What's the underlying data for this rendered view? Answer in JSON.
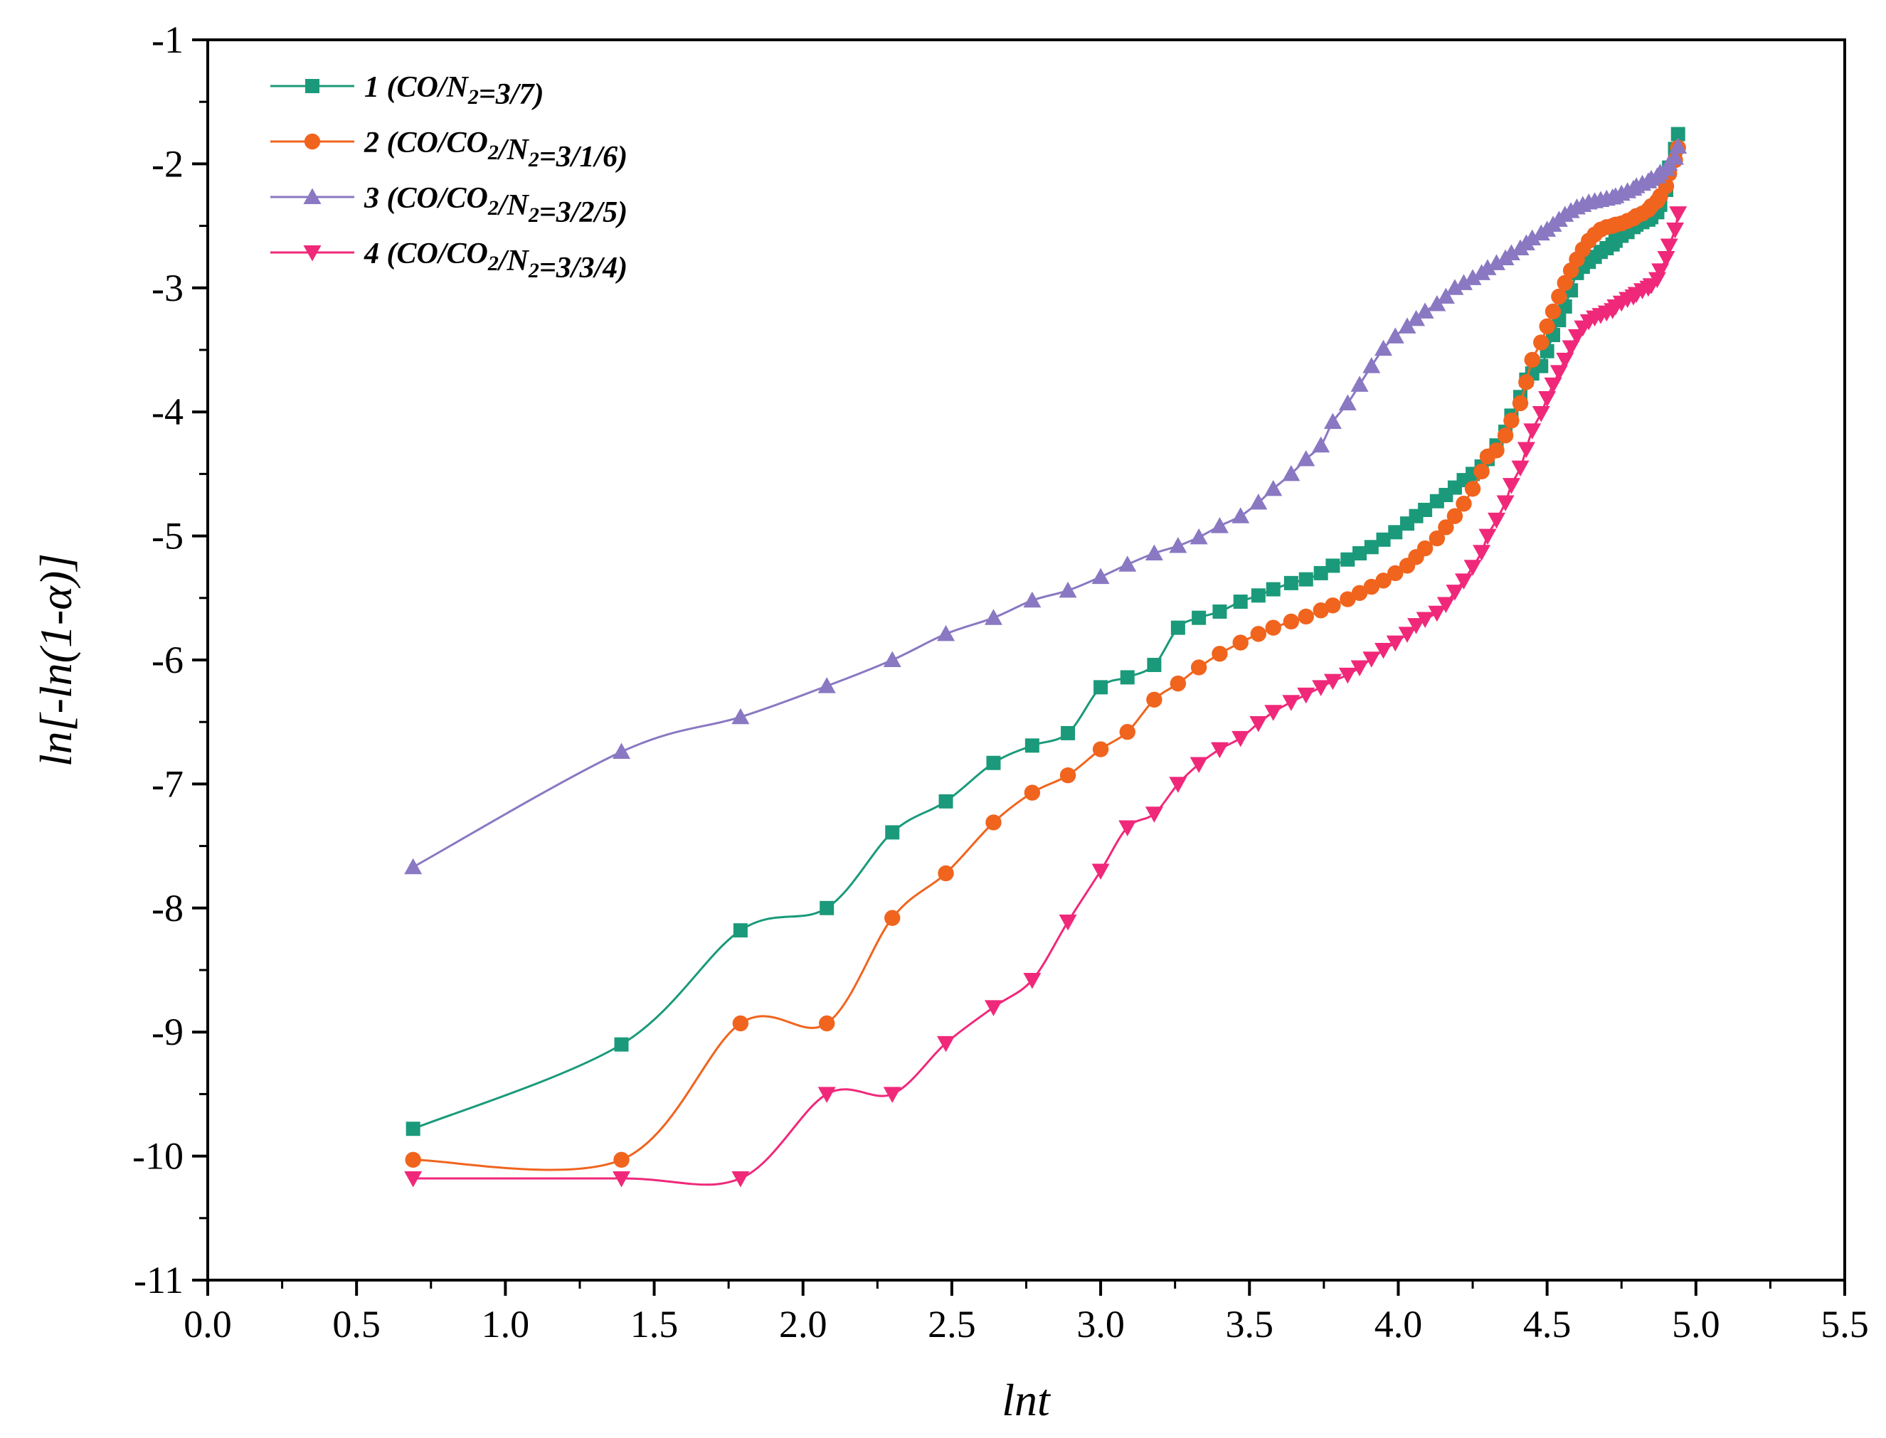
{
  "chart_data": {
    "type": "line",
    "title": "",
    "xlabel": "lnt",
    "ylabel": "ln[-ln(1-α)]",
    "xlim": [
      0.0,
      5.5
    ],
    "ylim": [
      -11,
      -1
    ],
    "x_ticks": [
      "0.0",
      "0.5",
      "1.0",
      "1.5",
      "2.0",
      "2.5",
      "3.0",
      "3.5",
      "4.0",
      "4.5",
      "5.0",
      "5.5"
    ],
    "y_ticks": [
      "-1",
      "-2",
      "-3",
      "-4",
      "-5",
      "-6",
      "-7",
      "-8",
      "-9",
      "-10",
      "-11"
    ],
    "legend_position": "top-left",
    "grid": false,
    "series": [
      {
        "name": "1 (CO/N2=3/7)",
        "legend_parts": [
          "1 (CO/N",
          "2",
          "=3/7)"
        ],
        "color": "#1a9a7a",
        "marker": "square",
        "x": [
          0.69,
          1.39,
          1.79,
          2.08,
          2.3,
          2.48,
          2.64,
          2.77,
          2.89,
          3.0,
          3.09,
          3.18,
          3.26,
          3.33,
          3.4,
          3.47,
          3.53,
          3.58,
          3.64,
          3.69,
          3.74,
          3.78,
          3.83,
          3.87,
          3.91,
          3.95,
          3.99,
          4.03,
          4.06,
          4.09,
          4.13,
          4.16,
          4.19,
          4.22,
          4.25,
          4.28,
          4.3,
          4.33,
          4.36,
          4.38,
          4.41,
          4.43,
          4.45,
          4.48,
          4.5,
          4.52,
          4.54,
          4.56,
          4.58,
          4.6,
          4.62,
          4.64,
          4.66,
          4.68,
          4.7,
          4.72,
          4.73,
          4.75,
          4.77,
          4.79,
          4.8,
          4.82,
          4.84,
          4.85,
          4.87,
          4.88,
          4.9,
          4.91,
          4.93,
          4.94
        ],
        "y": [
          -9.78,
          -9.1,
          -8.18,
          -8.0,
          -7.39,
          -7.14,
          -6.83,
          -6.69,
          -6.59,
          -6.22,
          -6.14,
          -6.04,
          -5.74,
          -5.66,
          -5.61,
          -5.53,
          -5.48,
          -5.43,
          -5.38,
          -5.35,
          -5.3,
          -5.24,
          -5.19,
          -5.14,
          -5.09,
          -5.03,
          -4.97,
          -4.9,
          -4.84,
          -4.79,
          -4.72,
          -4.67,
          -4.61,
          -4.55,
          -4.5,
          -4.44,
          -4.38,
          -4.27,
          -4.16,
          -4.03,
          -3.88,
          -3.74,
          -3.69,
          -3.63,
          -3.51,
          -3.38,
          -3.26,
          -3.15,
          -3.02,
          -2.88,
          -2.83,
          -2.79,
          -2.75,
          -2.71,
          -2.68,
          -2.65,
          -2.62,
          -2.58,
          -2.55,
          -2.51,
          -2.49,
          -2.47,
          -2.45,
          -2.43,
          -2.39,
          -2.33,
          -2.21,
          -2.03,
          -1.88,
          -1.76
        ]
      },
      {
        "name": "2 (CO/CO2/N2=3/1/6)",
        "legend_parts": [
          "2 (CO/CO",
          "2",
          "/N",
          "2",
          "=3/1/6)"
        ],
        "color": "#f0641e",
        "marker": "circle",
        "x": [
          0.69,
          1.39,
          1.79,
          2.08,
          2.3,
          2.48,
          2.64,
          2.77,
          2.89,
          3.0,
          3.09,
          3.18,
          3.26,
          3.33,
          3.4,
          3.47,
          3.53,
          3.58,
          3.64,
          3.69,
          3.74,
          3.78,
          3.83,
          3.87,
          3.91,
          3.95,
          3.99,
          4.03,
          4.06,
          4.09,
          4.13,
          4.16,
          4.19,
          4.22,
          4.25,
          4.28,
          4.3,
          4.33,
          4.36,
          4.38,
          4.41,
          4.43,
          4.45,
          4.48,
          4.5,
          4.52,
          4.54,
          4.56,
          4.58,
          4.6,
          4.62,
          4.64,
          4.66,
          4.68,
          4.7,
          4.72,
          4.73,
          4.75,
          4.77,
          4.79,
          4.8,
          4.82,
          4.84,
          4.85,
          4.87,
          4.88,
          4.9,
          4.91,
          4.93,
          4.94
        ],
        "y": [
          -10.03,
          -10.03,
          -8.93,
          -8.93,
          -8.08,
          -7.72,
          -7.31,
          -7.07,
          -6.93,
          -6.72,
          -6.58,
          -6.32,
          -6.19,
          -6.06,
          -5.95,
          -5.86,
          -5.79,
          -5.74,
          -5.69,
          -5.65,
          -5.6,
          -5.56,
          -5.51,
          -5.46,
          -5.41,
          -5.36,
          -5.3,
          -5.24,
          -5.17,
          -5.1,
          -5.02,
          -4.93,
          -4.84,
          -4.74,
          -4.62,
          -4.48,
          -4.36,
          -4.31,
          -4.19,
          -4.07,
          -3.93,
          -3.76,
          -3.58,
          -3.44,
          -3.31,
          -3.19,
          -3.07,
          -2.96,
          -2.86,
          -2.77,
          -2.69,
          -2.62,
          -2.57,
          -2.53,
          -2.51,
          -2.5,
          -2.49,
          -2.48,
          -2.46,
          -2.44,
          -2.42,
          -2.4,
          -2.37,
          -2.34,
          -2.3,
          -2.26,
          -2.18,
          -2.08,
          -1.97,
          -1.87
        ]
      },
      {
        "name": "3 (CO/CO2/N2=3/2/5)",
        "legend_parts": [
          "3 (CO/CO",
          "2",
          "/N",
          "2",
          "=3/2/5)"
        ],
        "color": "#8a78c2",
        "marker": "triangle-up",
        "x": [
          0.69,
          1.39,
          1.79,
          2.08,
          2.3,
          2.48,
          2.64,
          2.77,
          2.89,
          3.0,
          3.09,
          3.18,
          3.26,
          3.33,
          3.4,
          3.47,
          3.53,
          3.58,
          3.64,
          3.69,
          3.74,
          3.78,
          3.83,
          3.87,
          3.91,
          3.95,
          3.99,
          4.03,
          4.06,
          4.09,
          4.13,
          4.16,
          4.19,
          4.22,
          4.25,
          4.28,
          4.3,
          4.33,
          4.36,
          4.38,
          4.41,
          4.43,
          4.45,
          4.48,
          4.5,
          4.52,
          4.54,
          4.56,
          4.58,
          4.6,
          4.62,
          4.64,
          4.66,
          4.68,
          4.7,
          4.72,
          4.73,
          4.75,
          4.77,
          4.79,
          4.8,
          4.82,
          4.84,
          4.85,
          4.87,
          4.88,
          4.9,
          4.91,
          4.93,
          4.94
        ],
        "y": [
          -7.67,
          -6.74,
          -6.46,
          -6.21,
          -6.0,
          -5.79,
          -5.66,
          -5.52,
          -5.44,
          -5.33,
          -5.23,
          -5.14,
          -5.08,
          -5.01,
          -4.92,
          -4.84,
          -4.73,
          -4.62,
          -4.5,
          -4.38,
          -4.27,
          -4.08,
          -3.93,
          -3.78,
          -3.63,
          -3.49,
          -3.39,
          -3.31,
          -3.25,
          -3.19,
          -3.13,
          -3.07,
          -3.0,
          -2.96,
          -2.92,
          -2.88,
          -2.84,
          -2.8,
          -2.76,
          -2.72,
          -2.68,
          -2.64,
          -2.6,
          -2.56,
          -2.53,
          -2.49,
          -2.45,
          -2.41,
          -2.38,
          -2.35,
          -2.33,
          -2.31,
          -2.3,
          -2.29,
          -2.28,
          -2.27,
          -2.26,
          -2.24,
          -2.22,
          -2.2,
          -2.18,
          -2.16,
          -2.14,
          -2.12,
          -2.1,
          -2.07,
          -2.04,
          -2.0,
          -1.95,
          -1.86
        ]
      },
      {
        "name": "4 (CO/CO2/N2=3/3/4)",
        "legend_parts": [
          "4 (CO/CO",
          "2",
          "/N",
          "2",
          "=3/3/4)"
        ],
        "color": "#f0287a",
        "marker": "triangle-down",
        "x": [
          0.69,
          1.39,
          1.79,
          2.08,
          2.3,
          2.48,
          2.64,
          2.77,
          2.89,
          3.0,
          3.09,
          3.18,
          3.26,
          3.33,
          3.4,
          3.47,
          3.53,
          3.58,
          3.64,
          3.69,
          3.74,
          3.78,
          3.83,
          3.87,
          3.91,
          3.95,
          3.99,
          4.03,
          4.06,
          4.09,
          4.13,
          4.16,
          4.19,
          4.22,
          4.25,
          4.28,
          4.3,
          4.33,
          4.36,
          4.38,
          4.41,
          4.43,
          4.45,
          4.48,
          4.5,
          4.52,
          4.54,
          4.56,
          4.58,
          4.6,
          4.62,
          4.64,
          4.66,
          4.68,
          4.7,
          4.72,
          4.73,
          4.75,
          4.77,
          4.79,
          4.8,
          4.82,
          4.84,
          4.85,
          4.87,
          4.88,
          4.9,
          4.91,
          4.93,
          4.94
        ],
        "y": [
          -10.18,
          -10.18,
          -10.18,
          -9.5,
          -9.5,
          -9.09,
          -8.8,
          -8.58,
          -8.11,
          -7.7,
          -7.35,
          -7.24,
          -7.0,
          -6.84,
          -6.72,
          -6.63,
          -6.51,
          -6.42,
          -6.34,
          -6.28,
          -6.22,
          -6.17,
          -6.12,
          -6.06,
          -5.99,
          -5.92,
          -5.86,
          -5.79,
          -5.72,
          -5.67,
          -5.62,
          -5.55,
          -5.45,
          -5.36,
          -5.25,
          -5.13,
          -5.0,
          -4.87,
          -4.73,
          -4.59,
          -4.45,
          -4.3,
          -4.15,
          -4.01,
          -3.89,
          -3.78,
          -3.68,
          -3.58,
          -3.48,
          -3.39,
          -3.32,
          -3.27,
          -3.24,
          -3.22,
          -3.2,
          -3.18,
          -3.15,
          -3.12,
          -3.09,
          -3.07,
          -3.05,
          -3.02,
          -3.0,
          -2.98,
          -2.93,
          -2.86,
          -2.76,
          -2.66,
          -2.53,
          -2.4
        ]
      }
    ]
  }
}
